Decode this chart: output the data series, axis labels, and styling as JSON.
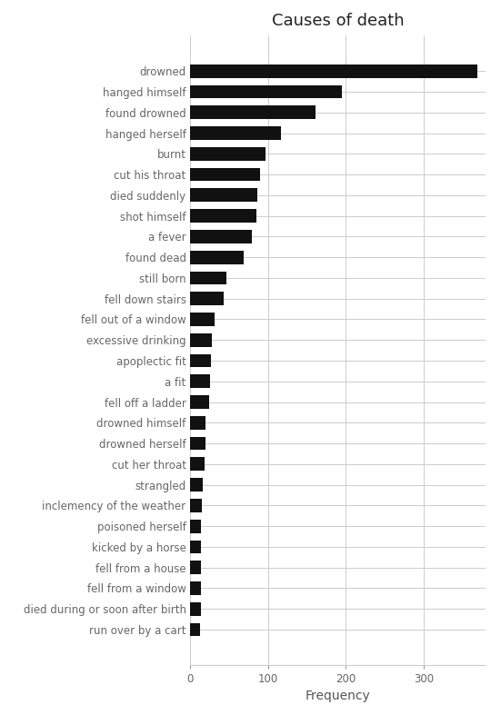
{
  "categories": [
    "drowned",
    "hanged himself",
    "found drowned",
    "hanged herself",
    "burnt",
    "cut his throat",
    "died suddenly",
    "shot himself",
    "a fever",
    "found dead",
    "still born",
    "fell down stairs",
    "fell out of a window",
    "excessive drinking",
    "apoplectic fit",
    "a fit",
    "fell off a ladder",
    "drowned himself",
    "drowned herself",
    "cut her throat",
    "strangled",
    "inclemency of the weather",
    "poisoned herself",
    "kicked by a horse",
    "fell from a house",
    "fell from a window",
    "died during or soon after birth",
    "run over by a cart"
  ],
  "values": [
    369,
    195,
    161,
    116,
    97,
    90,
    86,
    85,
    79,
    68,
    46,
    43,
    31,
    28,
    26,
    25,
    24,
    20,
    20,
    18,
    16,
    15,
    14,
    14,
    13,
    13,
    13,
    12
  ],
  "bar_color": "#111111",
  "title": "Causes of death",
  "xlabel": "Frequency",
  "background_color": "#ffffff",
  "grid_color": "#cccccc",
  "title_fontsize": 13,
  "label_fontsize": 8.5,
  "tick_fontsize": 8.5,
  "xlim_max": 380,
  "bar_height": 0.65
}
